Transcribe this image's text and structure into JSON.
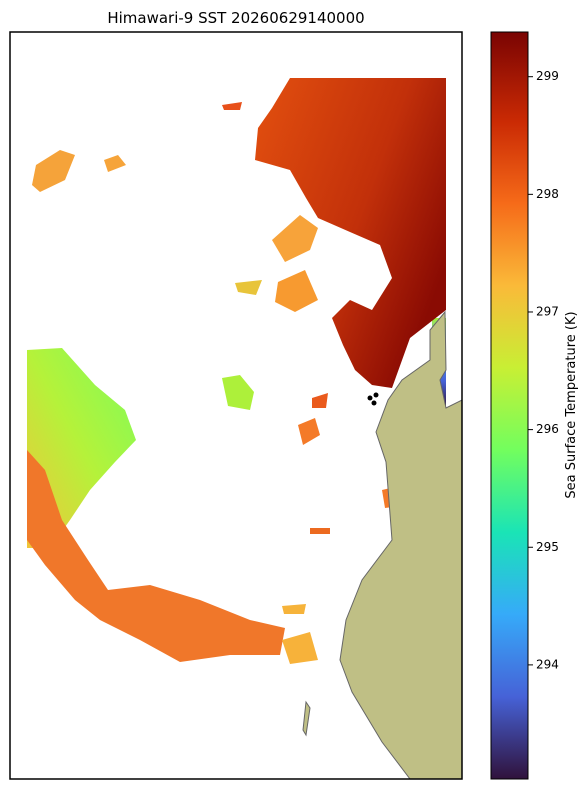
{
  "title": "Himawari-9 SST 20260629140000",
  "colorbar": {
    "label": "Sea Surface Temperature (K)",
    "lim": [
      293.03,
      299.38
    ],
    "ticks": [
      294,
      295,
      296,
      297,
      298,
      299
    ]
  }
}
